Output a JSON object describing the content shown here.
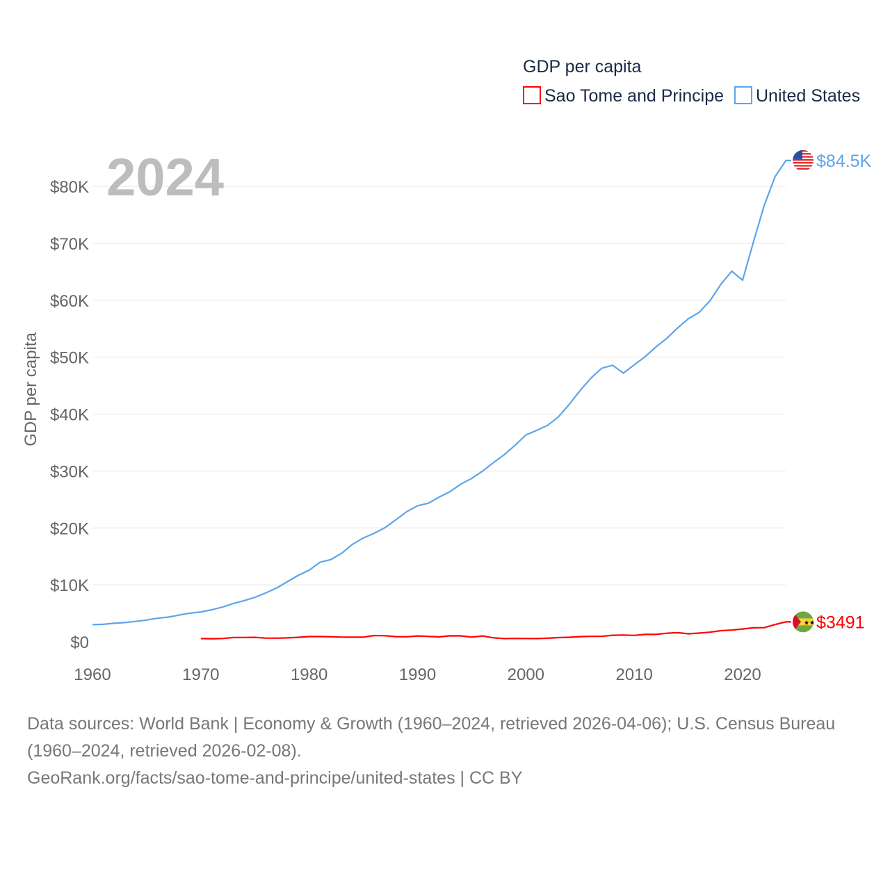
{
  "chart_data": {
    "type": "line",
    "title": "GDP per capita",
    "year_label": "2024",
    "xlabel": "",
    "ylabel": "GDP per capita",
    "xlim": [
      1960,
      2024
    ],
    "ylim": [
      0,
      85000
    ],
    "x_ticks": [
      "1960",
      "1970",
      "1980",
      "1990",
      "2000",
      "2010",
      "2020"
    ],
    "x_tick_values": [
      1960,
      1970,
      1980,
      1990,
      2000,
      2010,
      2020
    ],
    "y_ticks": [
      "$0",
      "$10K",
      "$20K",
      "$30K",
      "$40K",
      "$50K",
      "$60K",
      "$70K",
      "$80K"
    ],
    "y_tick_values": [
      0,
      10000,
      20000,
      30000,
      40000,
      50000,
      60000,
      70000,
      80000
    ],
    "grid": true,
    "legend_position": "top-right",
    "series": [
      {
        "name": "Sao Tome and Principe",
        "color": "#ff0000",
        "end_label": "$3491",
        "flag_icon": "sao-tome-flag-icon",
        "start_year": 1970,
        "values": [
          560,
          540,
          580,
          750,
          760,
          780,
          650,
          640,
          680,
          780,
          920,
          920,
          880,
          820,
          810,
          820,
          1100,
          1060,
          900,
          880,
          1030,
          940,
          850,
          1050,
          1040,
          820,
          1030,
          700,
          560,
          600,
          570,
          560,
          620,
          730,
          800,
          900,
          950,
          950,
          1150,
          1180,
          1120,
          1300,
          1300,
          1500,
          1600,
          1400,
          1530,
          1680,
          1960,
          2050,
          2250,
          2450,
          2480,
          3030,
          3491
        ]
      },
      {
        "name": "United States",
        "color": "#5da5ea",
        "end_label": "$84.5K",
        "flag_icon": "us-flag-icon",
        "start_year": 1960,
        "values": [
          3007,
          3067,
          3244,
          3375,
          3574,
          3828,
          4146,
          4336,
          4696,
          5032,
          5234,
          5609,
          6094,
          6726,
          7226,
          7801,
          8592,
          9453,
          10565,
          11674,
          12575,
          13976,
          14434,
          15544,
          17121,
          18237,
          19071,
          20039,
          21417,
          22857,
          23889,
          24342,
          25419,
          26387,
          27695,
          28691,
          29968,
          31459,
          32854,
          34515,
          36330,
          37134,
          38023,
          39496,
          41713,
          44115,
          46299,
          48050,
          48570,
          47195,
          48651,
          50066,
          51784,
          53291,
          55124,
          56763,
          57867,
          59915,
          62805,
          65095,
          63528,
          70219,
          76657,
          81695,
          84534
        ]
      }
    ]
  },
  "footer": {
    "sources": "Data sources: World Bank | Economy & Growth (1960–2024, retrieved 2026-04-06); U.S. Census Bureau (1960–2024, retrieved 2026-02-08).",
    "credit": "GeoRank.org/facts/sao-tome-and-principe/united-states | CC BY"
  }
}
